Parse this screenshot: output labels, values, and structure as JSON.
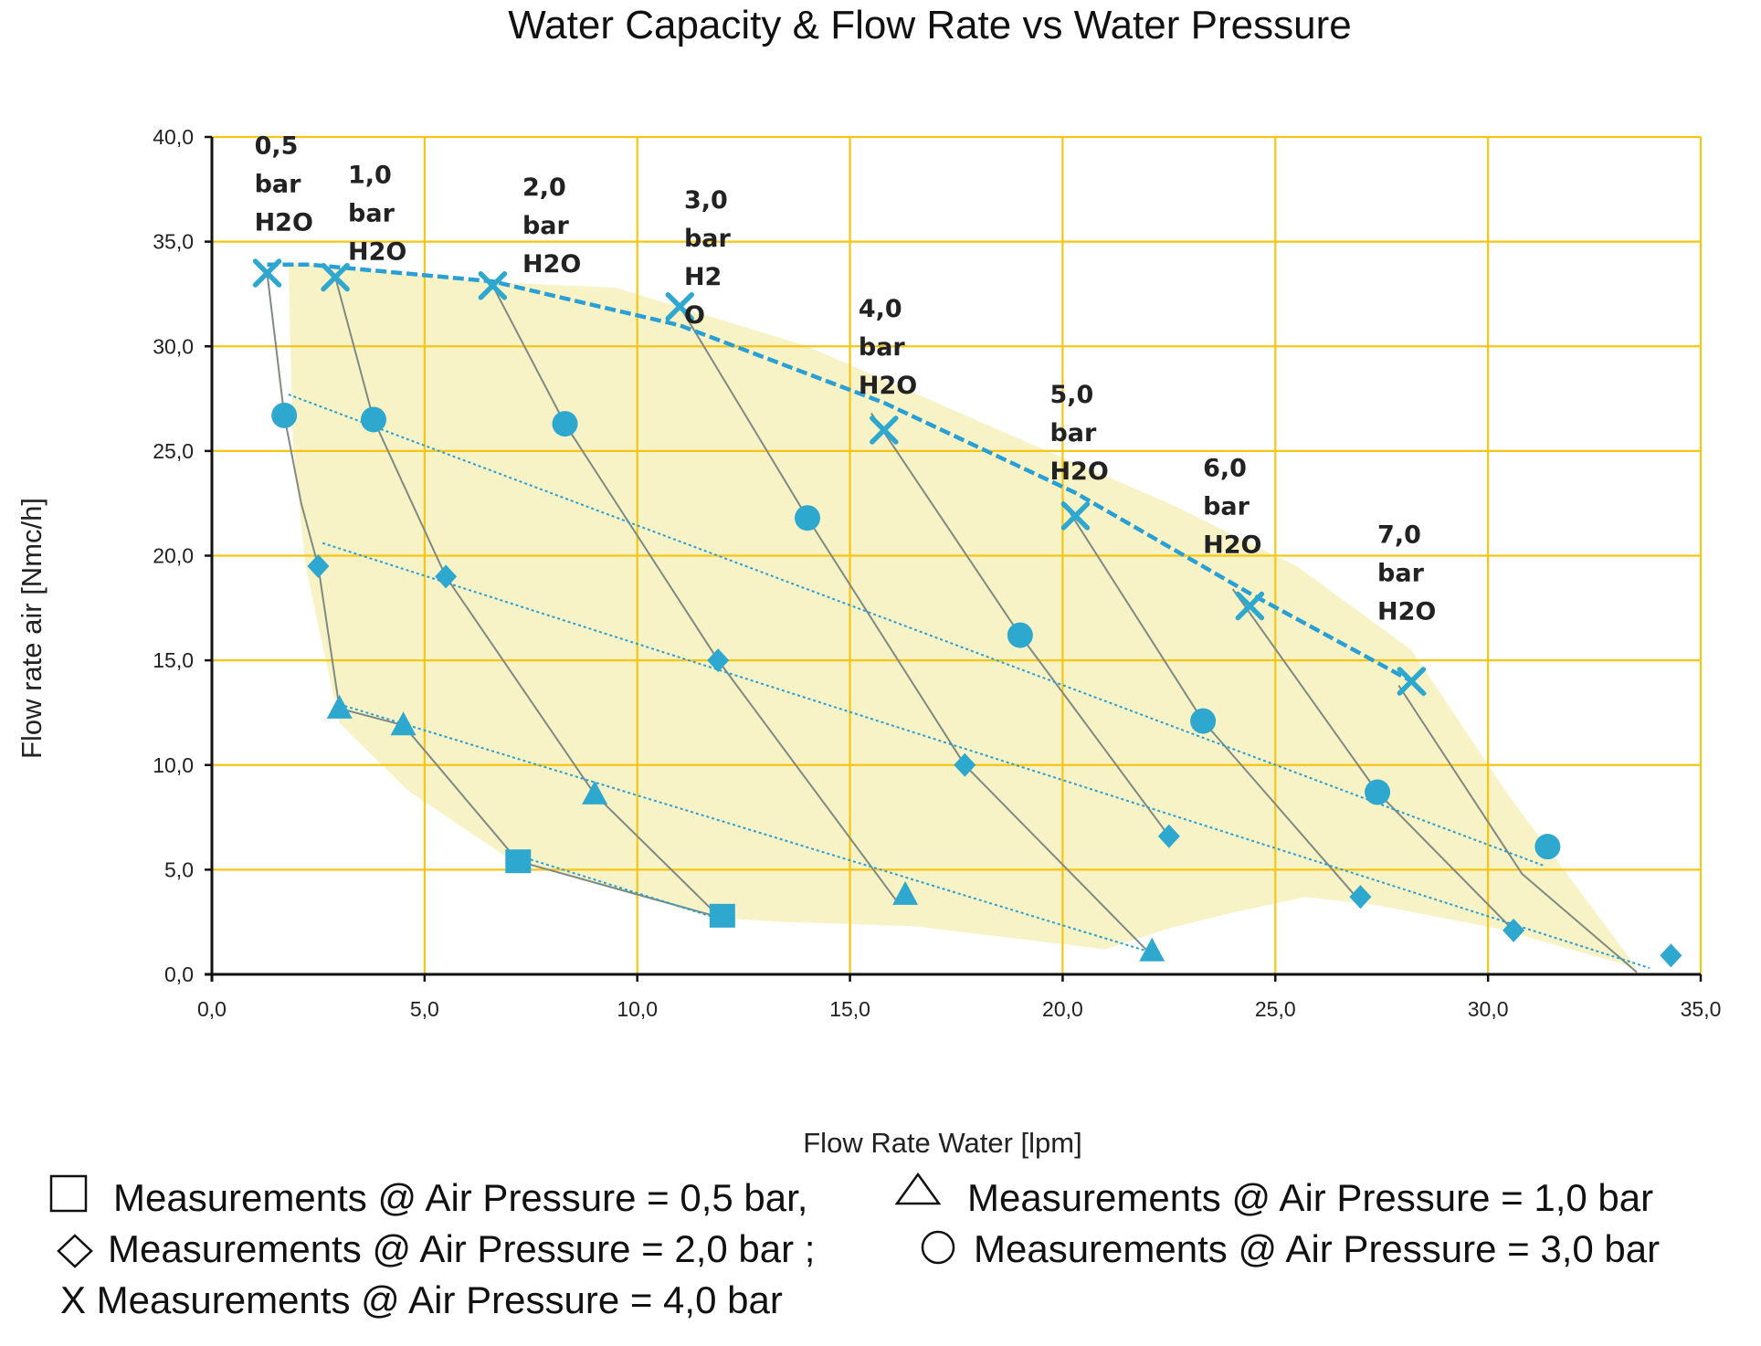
{
  "chart_data": {
    "type": "scatter",
    "title": "Water Capacity & Flow Rate vs Water Pressure",
    "xlabel": "Flow Rate Water [lpm]",
    "ylabel": "Flow rate air  [Nmc/h]",
    "xlim": [
      0,
      35
    ],
    "ylim": [
      0,
      40
    ],
    "x_ticks": [
      "0,0",
      "5,0",
      "10,0",
      "15,0",
      "20,0",
      "25,0",
      "30,0",
      "35,0"
    ],
    "y_ticks": [
      "0,0",
      "5,0",
      "10,0",
      "15,0",
      "20,0",
      "25,0",
      "30,0",
      "35,0",
      "40,0"
    ],
    "grid": true,
    "colors": {
      "marker": "#2ea8cf",
      "dashed_curve": "#2a9fd6",
      "gray_line": "#7f8a83",
      "grid": "#f5c518",
      "envelope": "#f7f3c6"
    },
    "series": [
      {
        "name": "Measurements @ Air Pressure = 0,5 bar",
        "marker": "square",
        "points": [
          [
            7.2,
            5.4
          ],
          [
            12.0,
            2.8
          ]
        ]
      },
      {
        "name": "Measurements @ Air Pressure = 1,0 bar",
        "marker": "triangle",
        "points": [
          [
            3.0,
            12.7
          ],
          [
            4.5,
            11.9
          ],
          [
            9.0,
            8.6
          ],
          [
            16.3,
            3.8
          ],
          [
            22.1,
            1.1
          ]
        ]
      },
      {
        "name": "Measurements @ Air Pressure = 2,0 bar",
        "marker": "diamond",
        "points": [
          [
            2.5,
            19.5
          ],
          [
            5.5,
            19.0
          ],
          [
            11.9,
            15.0
          ],
          [
            17.7,
            10.0
          ],
          [
            22.5,
            6.6
          ],
          [
            27.0,
            3.7
          ],
          [
            30.6,
            2.1
          ],
          [
            34.3,
            0.9
          ]
        ]
      },
      {
        "name": "Measurements @ Air Pressure = 3,0 bar",
        "marker": "circle",
        "points": [
          [
            1.7,
            26.7
          ],
          [
            3.8,
            26.5
          ],
          [
            8.3,
            26.3
          ],
          [
            14.0,
            21.8
          ],
          [
            19.0,
            16.2
          ],
          [
            23.3,
            12.1
          ],
          [
            27.4,
            8.7
          ],
          [
            31.4,
            6.1
          ]
        ]
      },
      {
        "name": "Measurements @ Air Pressure = 4,0 bar",
        "marker": "x",
        "points": [
          [
            1.3,
            33.5
          ],
          [
            2.9,
            33.3
          ],
          [
            6.6,
            32.9
          ],
          [
            11.0,
            31.9
          ],
          [
            15.8,
            26.0
          ],
          [
            20.3,
            21.9
          ],
          [
            24.4,
            17.6
          ],
          [
            28.2,
            14.0
          ]
        ]
      }
    ],
    "water_pressure_labels": [
      {
        "lines": [
          "0,5",
          "bar",
          "H2O"
        ],
        "anchor": [
          1.0,
          39.2
        ]
      },
      {
        "lines": [
          "1,0",
          "bar",
          "H2O"
        ],
        "anchor": [
          3.2,
          37.8
        ]
      },
      {
        "lines": [
          "2,0",
          "bar",
          "H2O"
        ],
        "anchor": [
          7.3,
          37.2
        ]
      },
      {
        "lines": [
          "3,0",
          "bar",
          "H2",
          "O"
        ],
        "anchor": [
          11.1,
          36.6
        ]
      },
      {
        "lines": [
          "4,0",
          "bar",
          "H2O"
        ],
        "anchor": [
          15.2,
          31.4
        ]
      },
      {
        "lines": [
          "5,0",
          "bar",
          "H2O"
        ],
        "anchor": [
          19.7,
          27.3
        ]
      },
      {
        "lines": [
          "6,0",
          "bar",
          "H2O"
        ],
        "anchor": [
          23.3,
          23.8
        ]
      },
      {
        "lines": [
          "7,0",
          "bar",
          "H2O"
        ],
        "anchor": [
          27.4,
          20.6
        ]
      }
    ],
    "water_pressure_lines": [
      [
        [
          1.3,
          33.5
        ],
        [
          1.7,
          26.7
        ],
        [
          2.1,
          22.5
        ],
        [
          2.5,
          19.5
        ],
        [
          3.0,
          12.7
        ],
        [
          4.5,
          11.9
        ],
        [
          7.2,
          5.4
        ],
        [
          11.8,
          2.8
        ]
      ],
      [
        [
          2.9,
          33.3
        ],
        [
          3.8,
          26.5
        ],
        [
          5.5,
          19.0
        ],
        [
          9.0,
          8.6
        ],
        [
          11.9,
          2.8
        ]
      ],
      [
        [
          6.6,
          32.9
        ],
        [
          8.3,
          26.3
        ],
        [
          11.9,
          15.0
        ],
        [
          16.1,
          3.5
        ]
      ],
      [
        [
          11.0,
          31.9
        ],
        [
          14.0,
          21.8
        ],
        [
          17.7,
          10.0
        ],
        [
          22.0,
          1.1
        ]
      ],
      [
        [
          15.5,
          26.8
        ],
        [
          19.0,
          16.2
        ],
        [
          22.5,
          6.6
        ]
      ],
      [
        [
          20.0,
          22.6
        ],
        [
          23.3,
          12.1
        ],
        [
          26.9,
          3.7
        ]
      ],
      [
        [
          24.0,
          18.4
        ],
        [
          27.4,
          8.7
        ],
        [
          30.6,
          2.1
        ]
      ],
      [
        [
          27.9,
          13.8
        ],
        [
          30.8,
          4.8
        ],
        [
          33.5,
          0.1
        ]
      ]
    ],
    "air_pressure_lines": [
      {
        "marker": "square",
        "points": [
          [
            7.0,
            5.8
          ],
          [
            12.0,
            2.6
          ]
        ]
      },
      {
        "marker": "triangle",
        "points": [
          [
            3.0,
            12.9
          ],
          [
            22.0,
            1.1
          ]
        ]
      },
      {
        "marker": "diamond",
        "points": [
          [
            2.6,
            20.6
          ],
          [
            33.8,
            0.3
          ]
        ]
      },
      {
        "marker": "circle",
        "points": [
          [
            1.8,
            27.7
          ],
          [
            31.3,
            5.2
          ]
        ]
      },
      {
        "marker": "x",
        "points": [
          [
            1.3,
            33.9
          ],
          [
            2.3,
            33.9
          ],
          [
            6.6,
            33.1
          ],
          [
            11.0,
            31.0
          ],
          [
            15.8,
            27.3
          ],
          [
            20.3,
            23.0
          ],
          [
            24.4,
            18.2
          ],
          [
            28.2,
            14.0
          ],
          [
            28.6,
            13.2
          ]
        ]
      }
    ],
    "envelope": [
      [
        1.8,
        34.0
      ],
      [
        6.3,
        33.1
      ],
      [
        9.5,
        32.8
      ],
      [
        14.0,
        30.0
      ],
      [
        18.5,
        26.0
      ],
      [
        22.5,
        22.5
      ],
      [
        25.5,
        19.5
      ],
      [
        28.2,
        15.5
      ],
      [
        30.5,
        8.5
      ],
      [
        33.5,
        0.3
      ],
      [
        30.2,
        2.2
      ],
      [
        27.4,
        3.3
      ],
      [
        25.7,
        3.7
      ],
      [
        23.9,
        2.9
      ],
      [
        22.5,
        2.2
      ],
      [
        21.0,
        1.2
      ],
      [
        16.5,
        2.3
      ],
      [
        13.5,
        2.5
      ],
      [
        11.8,
        2.7
      ],
      [
        7.0,
        5.5
      ],
      [
        4.6,
        8.8
      ],
      [
        3.0,
        12.0
      ],
      [
        2.2,
        19.5
      ],
      [
        1.9,
        25.5
      ]
    ]
  },
  "legend": [
    {
      "symbol": "square",
      "text": "Measurements @ Air Pressure = 0,5 bar,"
    },
    {
      "symbol": "triangle",
      "text": "Measurements @ Air Pressure = 1,0 bar"
    },
    {
      "symbol": "diamond",
      "text": "Measurements @ Air Pressure = 2,0 bar ;"
    },
    {
      "symbol": "circle",
      "text": "Measurements @ Air Pressure = 3,0 bar"
    },
    {
      "symbol": "x",
      "text": "X Measurements @ Air Pressure = 4,0 bar"
    }
  ]
}
